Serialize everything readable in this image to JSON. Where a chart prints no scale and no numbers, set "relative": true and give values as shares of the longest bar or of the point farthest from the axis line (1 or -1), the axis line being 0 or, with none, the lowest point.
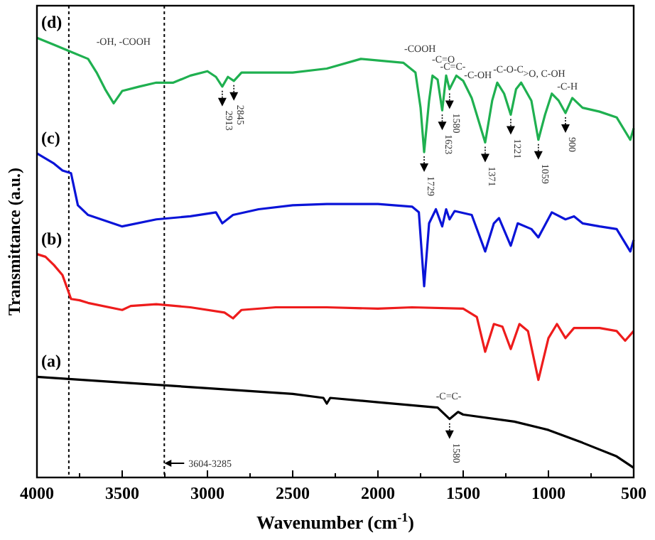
{
  "chart_data": {
    "type": "line",
    "relative": true,
    "xlabel": "Wavenumber (cm$^{-1}$)",
    "ylabel": "Transmittance (a.u.)",
    "xlim": [
      4000,
      500
    ],
    "xticks": [
      4000,
      {
        "value": 3750,
        "label": null
      },
      3500,
      {
        "value": 3250,
        "label": null
      },
      3000,
      {
        "value": 2750,
        "label": null
      },
      2500,
      {
        "value": 2250,
        "label": null
      },
      2000,
      {
        "value": 1750,
        "label": null
      },
      1500,
      {
        "value": 1250,
        "label": null
      },
      1000,
      {
        "value": 750,
        "label": null
      },
      500
    ],
    "line_style": "solid",
    "marker": "none",
    "ref_lines": [
      {
        "axis": "x",
        "value": 3813,
        "color": "#000000",
        "line_style": "dotted"
      },
      {
        "axis": "x",
        "value": 3253,
        "color": "#000000",
        "line_style": "dotted"
      }
    ],
    "annotations": [
      "-OH, -COOH",
      "-COOH",
      "-C=O",
      "-C=C-",
      "-C-OH",
      "-C-O-C",
      ">O, C-OH",
      "-C-H",
      "-C=C-",
      {
        "text": "2913",
        "x": 2913,
        "y": 0.889
      },
      {
        "text": "2845",
        "x": 2845,
        "y": 0.902
      },
      {
        "text": "1729",
        "x": 1729,
        "y": 0.74
      },
      {
        "text": "1623",
        "x": 1623,
        "y": 0.835
      },
      {
        "text": "1580",
        "x": 1580,
        "y": 0.883
      },
      {
        "text": "1371",
        "x": 1371,
        "y": 0.762
      },
      {
        "text": "1221",
        "x": 1221,
        "y": 0.825
      },
      {
        "text": "1059",
        "x": 1059,
        "y": 0.768
      },
      {
        "text": "900",
        "x": 900,
        "y": 0.829
      },
      {
        "text": "1580",
        "x": 1580,
        "y": 0.133
      },
      {
        "text": "3604-3285",
        "x": 3253
      }
    ],
    "series": [
      {
        "name": "(d)",
        "color": "#1fb050",
        "x": [
          4000,
          3900,
          3800,
          3700,
          3650,
          3600,
          3550,
          3500,
          3400,
          3300,
          3200,
          3100,
          3000,
          2950,
          2913,
          2880,
          2845,
          2800,
          2700,
          2500,
          2300,
          2100,
          1850,
          1780,
          1750,
          1729,
          1700,
          1680,
          1650,
          1623,
          1600,
          1580,
          1540,
          1500,
          1450,
          1371,
          1330,
          1300,
          1260,
          1221,
          1190,
          1160,
          1100,
          1059,
          1020,
          980,
          940,
          900,
          860,
          800,
          700,
          600,
          520,
          500
        ],
        "values": [
          1.0,
          0.984,
          0.968,
          0.952,
          0.921,
          0.883,
          0.851,
          0.879,
          0.889,
          0.898,
          0.898,
          0.914,
          0.924,
          0.911,
          0.889,
          0.911,
          0.902,
          0.921,
          0.921,
          0.921,
          0.93,
          0.952,
          0.943,
          0.921,
          0.841,
          0.74,
          0.857,
          0.914,
          0.905,
          0.835,
          0.914,
          0.883,
          0.914,
          0.902,
          0.863,
          0.762,
          0.857,
          0.898,
          0.873,
          0.825,
          0.883,
          0.898,
          0.857,
          0.768,
          0.825,
          0.873,
          0.857,
          0.829,
          0.863,
          0.841,
          0.832,
          0.819,
          0.768,
          0.794
        ]
      },
      {
        "name": "(c)",
        "color": "#0a14d8",
        "x": [
          4000,
          3900,
          3850,
          3800,
          3760,
          3700,
          3500,
          3300,
          3100,
          2950,
          2913,
          2850,
          2700,
          2500,
          2300,
          2000,
          1800,
          1760,
          1729,
          1700,
          1660,
          1623,
          1600,
          1580,
          1550,
          1450,
          1371,
          1320,
          1290,
          1221,
          1180,
          1100,
          1059,
          980,
          900,
          850,
          800,
          700,
          600,
          520,
          500
        ],
        "values": [
          0.737,
          0.714,
          0.698,
          0.692,
          0.619,
          0.597,
          0.571,
          0.587,
          0.594,
          0.603,
          0.578,
          0.597,
          0.61,
          0.619,
          0.622,
          0.622,
          0.616,
          0.603,
          0.435,
          0.578,
          0.61,
          0.571,
          0.61,
          0.587,
          0.606,
          0.597,
          0.514,
          0.578,
          0.59,
          0.527,
          0.578,
          0.565,
          0.546,
          0.603,
          0.587,
          0.594,
          0.578,
          0.571,
          0.565,
          0.514,
          0.54
        ]
      },
      {
        "name": "(b)",
        "color": "#ee1c1c",
        "x": [
          4000,
          3950,
          3900,
          3850,
          3800,
          3750,
          3700,
          3500,
          3450,
          3300,
          3100,
          2900,
          2850,
          2800,
          2600,
          2300,
          2000,
          1800,
          1500,
          1420,
          1371,
          1320,
          1270,
          1221,
          1170,
          1120,
          1059,
          1000,
          950,
          900,
          850,
          700,
          600,
          550,
          500
        ],
        "values": [
          0.508,
          0.502,
          0.483,
          0.46,
          0.406,
          0.403,
          0.397,
          0.381,
          0.39,
          0.394,
          0.387,
          0.375,
          0.362,
          0.381,
          0.387,
          0.387,
          0.384,
          0.387,
          0.384,
          0.365,
          0.286,
          0.349,
          0.343,
          0.292,
          0.349,
          0.333,
          0.222,
          0.317,
          0.349,
          0.317,
          0.34,
          0.34,
          0.333,
          0.311,
          0.333
        ]
      },
      {
        "name": "(a)",
        "color": "#000000",
        "x": [
          4000,
          3500,
          3000,
          2500,
          2320,
          2300,
          2280,
          2000,
          1650,
          1580,
          1530,
          1500,
          1200,
          1000,
          800,
          600,
          500
        ],
        "values": [
          0.229,
          0.216,
          0.203,
          0.19,
          0.181,
          0.168,
          0.181,
          0.171,
          0.159,
          0.133,
          0.149,
          0.143,
          0.127,
          0.108,
          0.079,
          0.048,
          0.022
        ]
      }
    ]
  }
}
